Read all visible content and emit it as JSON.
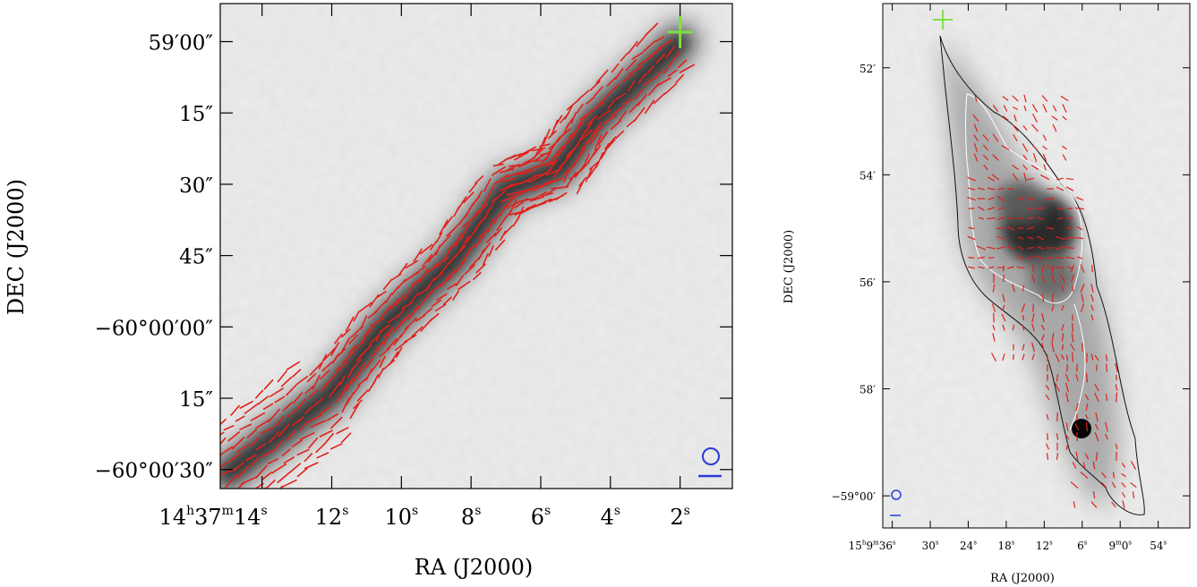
{
  "chart_data": [
    {
      "type": "scatter",
      "subtype": "polarization-vector-map",
      "xlabel": "RA (J2000)",
      "ylabel": "DEC (J2000)",
      "xticks": [
        {
          "value": 14,
          "label_main": "14",
          "label_h": "h",
          "label_mid": "37",
          "label_m": "m",
          "label_sec": "14",
          "label_s": "s"
        },
        {
          "value": 12,
          "label_sec": "12",
          "label_s": "s"
        },
        {
          "value": 10,
          "label_sec": "10",
          "label_s": "s"
        },
        {
          "value": 8,
          "label_sec": "8",
          "label_s": "s"
        },
        {
          "value": 6,
          "label_sec": "6",
          "label_s": "s"
        },
        {
          "value": 4,
          "label_sec": "4",
          "label_s": "s"
        },
        {
          "value": 2,
          "label_sec": "2",
          "label_s": "s"
        }
      ],
      "yticks": [
        "59′00″",
        "15″",
        "30″",
        "45″",
        "−60°00′00″",
        "15″",
        "−60°00′30″"
      ],
      "ytick_values_arcsec": [
        60,
        45,
        30,
        15,
        0,
        -15,
        -30
      ],
      "xlim_s": [
        15.2,
        0.5
      ],
      "ylim_arcsec": [
        -34,
        68
      ],
      "background": "grayscale intensity",
      "vector_color": "#e0201a",
      "marker": {
        "type": "plus",
        "color": "#7fe040",
        "ra_s": 2.0,
        "dec_arcsec": 62
      },
      "beam": {
        "color": "#2a3bd8"
      },
      "filament_spine": [
        {
          "ra_s": 15.0,
          "dec_arcsec": -31
        },
        {
          "ra_s": 12.0,
          "dec_arcsec": -14
        },
        {
          "ra_s": 10.5,
          "dec_arcsec": 0
        },
        {
          "ra_s": 8.5,
          "dec_arcsec": 14
        },
        {
          "ra_s": 7.0,
          "dec_arcsec": 29
        },
        {
          "ra_s": 5.5,
          "dec_arcsec": 33
        },
        {
          "ra_s": 4.5,
          "dec_arcsec": 43
        },
        {
          "ra_s": 2.0,
          "dec_arcsec": 60
        }
      ]
    },
    {
      "type": "scatter",
      "subtype": "polarization-vector-map",
      "xlabel": "RA (J2000)",
      "ylabel": "DEC (J2000)",
      "xticks": [
        {
          "value": 36,
          "label_main": "15",
          "label_h": "h",
          "label_mid": "9",
          "label_m": "m",
          "label_sec": "36",
          "label_s": "s"
        },
        {
          "value": 30,
          "label_sec": "30",
          "label_s": "s"
        },
        {
          "value": 24,
          "label_sec": "24",
          "label_s": "s"
        },
        {
          "value": 18,
          "label_sec": "18",
          "label_s": "s"
        },
        {
          "value": 12,
          "label_sec": "12",
          "label_s": "s"
        },
        {
          "value": 6,
          "label_sec": "6",
          "label_s": "s"
        },
        {
          "value": 0,
          "label_main": "9",
          "label_h": "m",
          "label_sec": "0",
          "label_s": "s"
        },
        {
          "value": -6,
          "label_sec": "54",
          "label_s": "s"
        }
      ],
      "yticks": [
        "52′",
        "54′",
        "56′",
        "58′",
        "−59°00′"
      ],
      "ytick_values_arcmin": [
        52,
        54,
        56,
        58,
        60
      ],
      "xlim_s": [
        37.5,
        -11
      ],
      "ylim_arcmin": [
        50.8,
        60.6
      ],
      "background": "grayscale intensity with contours",
      "vector_color": "#e0201a",
      "contour_colors": [
        "#111111",
        "#ffffff"
      ],
      "marker": {
        "type": "plus",
        "color": "#7fe040",
        "ra_s": 28,
        "dec_arcmin": 51.1
      },
      "beam": {
        "color": "#2a3bd8"
      }
    }
  ]
}
